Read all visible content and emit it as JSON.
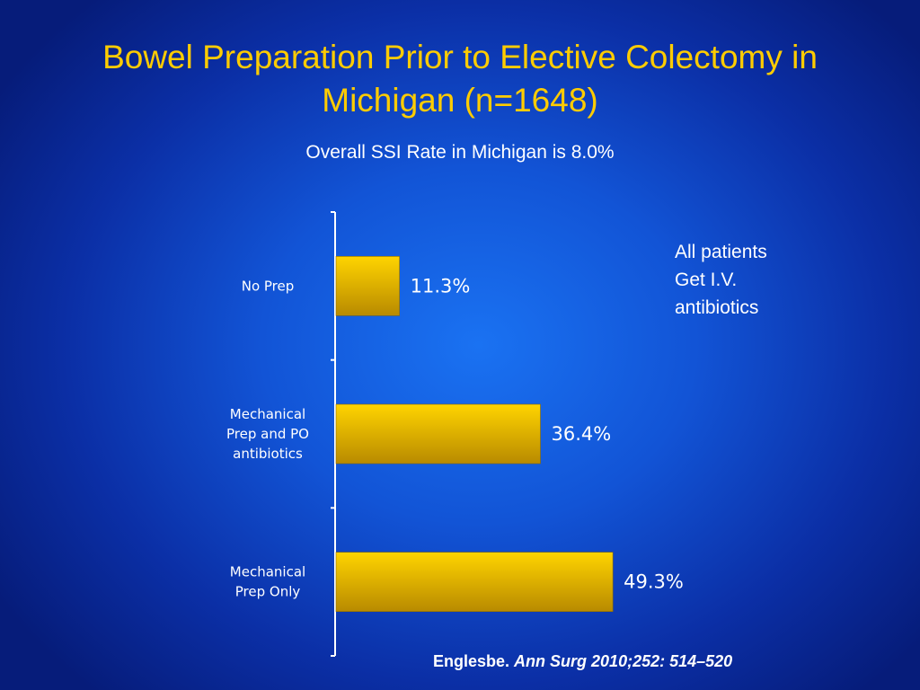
{
  "slide": {
    "title": "Bowel Preparation Prior to Elective Colectomy in Michigan (n=1648)",
    "subtitle": "Overall SSI Rate in Michigan is 8.0%",
    "note_lines": [
      "All patients",
      "Get I.V.",
      "antibiotics"
    ],
    "citation_author": "Englesbe.",
    "citation_journal": "Ann Surg 2010;252: 514–520"
  },
  "colors": {
    "title": "#ffcc00",
    "bar_top": "#ffd400",
    "bar_bottom": "#b88a00",
    "text": "#ffffff"
  },
  "chart_data": {
    "type": "bar",
    "orientation": "horizontal",
    "categories": [
      [
        "No Prep"
      ],
      [
        "Mechanical",
        "Prep and PO",
        "antibiotics"
      ],
      [
        "Mechanical",
        "Prep Only"
      ]
    ],
    "values": [
      11.3,
      36.4,
      49.3
    ],
    "value_labels": [
      "11.3%",
      "36.4%",
      "49.3%"
    ],
    "xlim": [
      0,
      100
    ],
    "grid": false,
    "legend": "none"
  }
}
